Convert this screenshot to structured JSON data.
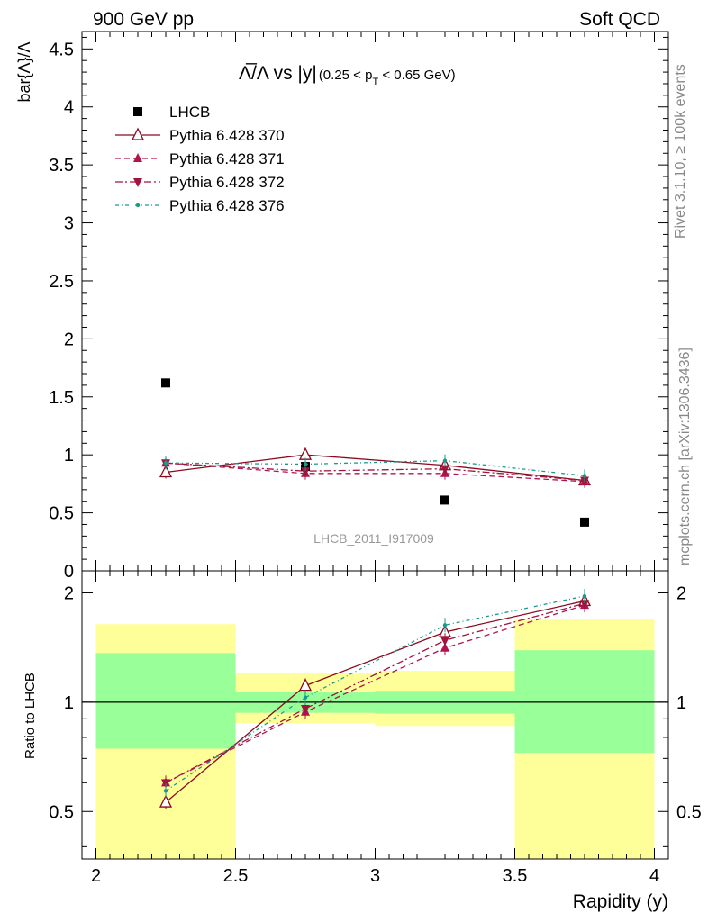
{
  "header": {
    "energy_label": "900 GeV pp",
    "process_label": "Soft QCD"
  },
  "side_labels": {
    "rivet": "Rivet 3.1.10, ≥ 100k events",
    "source": "mcplots.cern.ch [arXiv:1306.3436]"
  },
  "chart_data": [
    {
      "type": "scatter",
      "panel": "main",
      "title_parts": {
        "main": "Λ̅/Λ vs |y|",
        "cut": "(0.25 < p",
        "sub": "T",
        "cut_end": " < 0.65 GeV)"
      },
      "ylabel": "bar{Λ}/Λ",
      "watermark": "LHCB_2011_I917009",
      "xlim": [
        1.95,
        4.05
      ],
      "ylim": [
        0,
        4.65
      ],
      "yticks": [
        0,
        0.5,
        1,
        1.5,
        2,
        2.5,
        3,
        3.5,
        4,
        4.5
      ],
      "ytick_labels": [
        "0",
        "0.5",
        "1",
        "1.5",
        "2",
        "2.5",
        "3",
        "3.5",
        "4",
        "4.5"
      ],
      "x": [
        2.25,
        2.75,
        3.25,
        3.75
      ],
      "series": [
        {
          "name": "LHCB",
          "values": [
            1.62,
            0.9,
            0.61,
            0.42
          ],
          "color": "#000000",
          "marker": "square"
        },
        {
          "name": "Pythia 6.428 370",
          "values": [
            0.85,
            1.0,
            0.91,
            0.78
          ],
          "color": "#8b0a1e",
          "marker": "triangle-up-open",
          "dash": ""
        },
        {
          "name": "Pythia 6.428 371",
          "values": [
            0.93,
            0.84,
            0.84,
            0.77
          ],
          "color": "#b0144e",
          "marker": "triangle-up",
          "dash": "6,4"
        },
        {
          "name": "Pythia 6.428 372",
          "values": [
            0.93,
            0.86,
            0.88,
            0.78
          ],
          "color": "#a0143e",
          "marker": "triangle-down",
          "dash": "8,3,2,3"
        },
        {
          "name": "Pythia 6.428 376",
          "values": [
            0.93,
            0.92,
            0.95,
            0.82
          ],
          "color": "#1a9a8a",
          "marker": "dot",
          "dash": "4,3,1,3"
        }
      ]
    },
    {
      "type": "scatter",
      "panel": "ratio",
      "ylabel": "Ratio to LHCB",
      "xlabel": "Rapidity (y)",
      "log_y": true,
      "xlim": [
        1.95,
        4.05
      ],
      "ylim": [
        0.37,
        2.3
      ],
      "xticks": [
        2,
        2.5,
        3,
        3.5,
        4
      ],
      "xtick_labels": [
        "2",
        "2.5",
        "3",
        "3.5",
        "4"
      ],
      "yticks": [
        0.5,
        1,
        2
      ],
      "ytick_labels": [
        "0.5",
        "1",
        "2"
      ],
      "bands": [
        {
          "x": [
            2.0,
            2.5
          ],
          "inner": [
            0.745,
            1.365
          ],
          "outer": [
            0.37,
            1.64
          ]
        },
        {
          "x": [
            2.5,
            3.0
          ],
          "inner": [
            0.935,
            1.07
          ],
          "outer": [
            0.875,
            1.2
          ]
        },
        {
          "x": [
            3.0,
            3.5
          ],
          "inner": [
            0.93,
            1.075
          ],
          "outer": [
            0.86,
            1.22
          ]
        },
        {
          "x": [
            3.5,
            4.0
          ],
          "inner": [
            0.725,
            1.39
          ],
          "outer": [
            0.37,
            1.69
          ]
        }
      ],
      "band_colors": {
        "inner": "#99ff99",
        "outer": "#ffff99"
      },
      "x": [
        2.25,
        2.75,
        3.25,
        3.75
      ],
      "series": [
        {
          "name": "Pythia 6.428 370",
          "values": [
            0.53,
            1.11,
            1.56,
            1.9
          ],
          "color": "#8b0a1e",
          "marker": "triangle-up-open",
          "dash": ""
        },
        {
          "name": "Pythia 6.428 371",
          "values": [
            0.6,
            0.94,
            1.41,
            1.85
          ],
          "color": "#b0144e",
          "marker": "triangle-up",
          "dash": "6,4"
        },
        {
          "name": "Pythia 6.428 372",
          "values": [
            0.6,
            0.96,
            1.48,
            1.87
          ],
          "color": "#a0143e",
          "marker": "triangle-down",
          "dash": "8,3,2,3"
        },
        {
          "name": "Pythia 6.428 376",
          "values": [
            0.57,
            1.03,
            1.63,
            1.96
          ],
          "color": "#1a9a8a",
          "marker": "dot",
          "dash": "4,3,1,3"
        }
      ]
    }
  ]
}
